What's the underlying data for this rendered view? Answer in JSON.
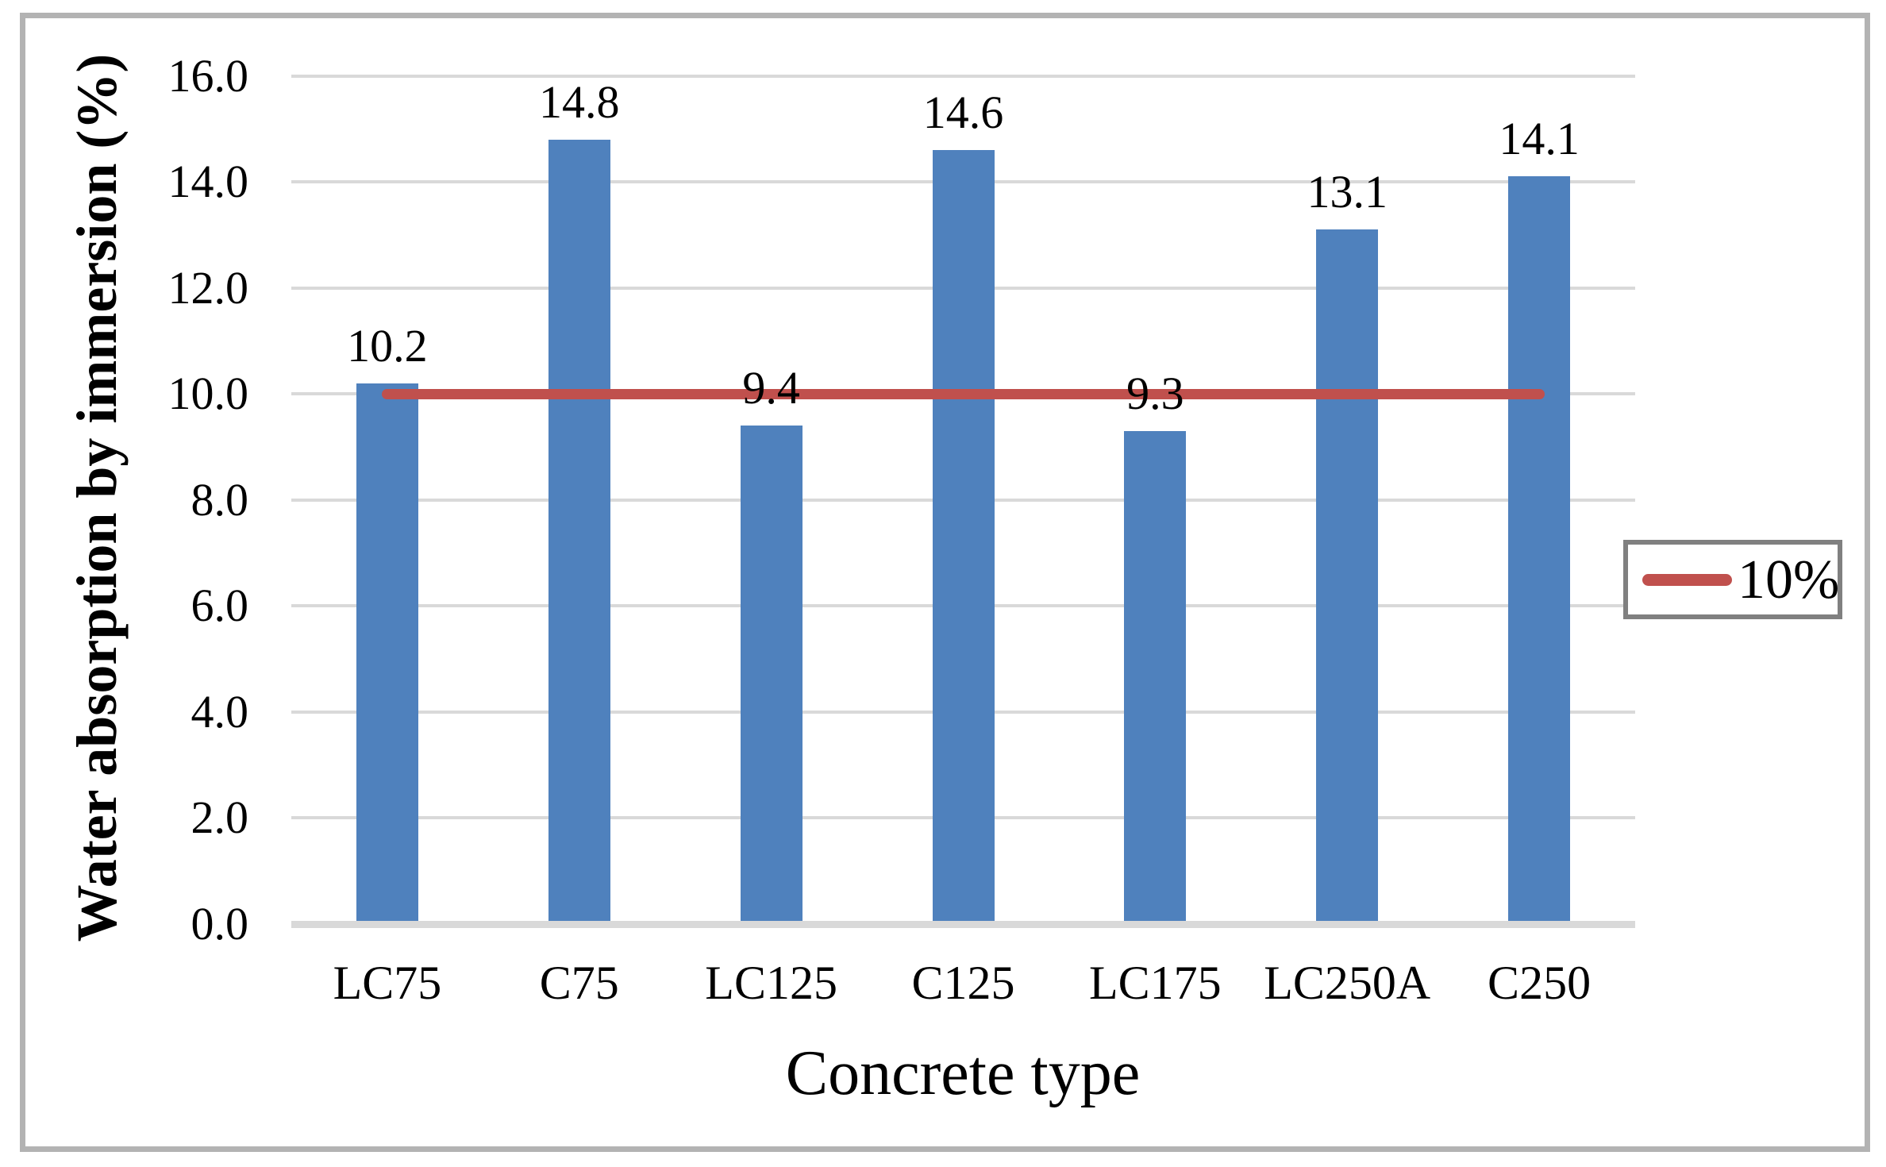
{
  "chart_data": {
    "type": "bar",
    "title": "",
    "xlabel": "Concrete type",
    "ylabel": "Water absorption by immersion (%)",
    "categories": [
      "LC75",
      "C75",
      "LC125",
      "C125",
      "LC175",
      "LC250A",
      "C250"
    ],
    "values": [
      10.2,
      14.8,
      9.4,
      14.6,
      9.3,
      13.1,
      14.1
    ],
    "data_labels": [
      "10.2",
      "14.8",
      "9.4",
      "14.6",
      "9.3",
      "13.1",
      "14.1"
    ],
    "ylim": [
      0,
      16
    ],
    "ytick_step": 2,
    "ytick_labels": [
      "0.0",
      "2.0",
      "4.0",
      "6.0",
      "8.0",
      "10.0",
      "12.0",
      "14.0",
      "16.0"
    ],
    "grid": true,
    "ref_line": {
      "value": 10,
      "label": "10%"
    },
    "legend_position": "right",
    "colors": {
      "bar": "#4f81bd",
      "ref_line": "#c0504d",
      "gridline": "#d9d9d9",
      "axis_line": "#d9d9d9",
      "frame_border": "#b3b3b3",
      "legend_border": "#808080",
      "text": "#000000"
    }
  }
}
